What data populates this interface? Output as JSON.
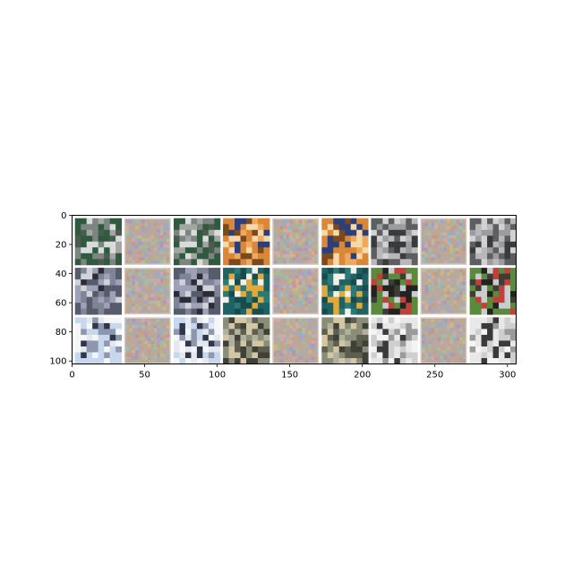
{
  "figure": {
    "x_ticks": [
      "0",
      "50",
      "100",
      "150",
      "200",
      "250",
      "300"
    ],
    "y_ticks": [
      "0",
      "20",
      "40",
      "60",
      "80",
      "100"
    ],
    "x_extent": [
      0,
      306
    ],
    "y_extent": [
      0,
      102
    ]
  },
  "grid": {
    "rows": 3,
    "cols": 9,
    "tile_pixels": 32,
    "padding_pixels": 2,
    "noise_tile_base": "#b8a89e",
    "noise_tile_border": "#d4c9c1",
    "tiles": [
      [
        {
          "content": "cat-vs-dog image (clean)",
          "kind": "photo",
          "palette": [
            "#2f5a3e",
            "#a2a7a3",
            "#d9dcdb",
            "#4c5b52",
            "#7c8580"
          ]
        },
        {
          "content": "adversarial noise pattern",
          "kind": "noise"
        },
        {
          "content": "cat-vs-dog image (adversarial)",
          "kind": "photo",
          "palette": [
            "#2f5a3e",
            "#a2a7a3",
            "#d9dcdb",
            "#4c5b52",
            "#7c8580"
          ]
        },
        {
          "content": "orange cat face (clean)",
          "kind": "photo",
          "palette": [
            "#d98738",
            "#f0a85a",
            "#2d3e7a",
            "#f5d9a8",
            "#7a4a1c"
          ]
        },
        {
          "content": "adversarial noise pattern",
          "kind": "noise"
        },
        {
          "content": "orange cat face (adversarial)",
          "kind": "photo",
          "palette": [
            "#d98738",
            "#f0a85a",
            "#2d3e7a",
            "#f5d9a8",
            "#7a4a1c"
          ]
        },
        {
          "content": "grey car (clean)",
          "kind": "photo",
          "palette": [
            "#5d5e60",
            "#9c9c9e",
            "#d2d2d3",
            "#3a3b3d",
            "#b8b8ba"
          ]
        },
        {
          "content": "adversarial noise pattern",
          "kind": "noise"
        },
        {
          "content": "grey car (adversarial)",
          "kind": "photo",
          "palette": [
            "#5d5e60",
            "#9c9c9e",
            "#d2d2d3",
            "#3a3b3d",
            "#b8b8ba"
          ]
        }
      ],
      [
        {
          "content": "silver car (clean)",
          "kind": "photo",
          "palette": [
            "#575c6d",
            "#9ea1b8",
            "#d2d2db",
            "#2a2c36",
            "#7f8497"
          ]
        },
        {
          "content": "adversarial noise pattern",
          "kind": "noise"
        },
        {
          "content": "silver car (adversarial)",
          "kind": "photo",
          "palette": [
            "#575c6d",
            "#9ea1b8",
            "#d2d2db",
            "#2a2c36",
            "#7f8497"
          ]
        },
        {
          "content": "seaplane over teal water (clean)",
          "kind": "photo",
          "palette": [
            "#1f6264",
            "#2c7a76",
            "#f1f1ea",
            "#e1a83b",
            "#184b4d"
          ]
        },
        {
          "content": "adversarial noise pattern",
          "kind": "noise"
        },
        {
          "content": "seaplane over teal water (adversarial)",
          "kind": "photo",
          "palette": [
            "#1f6264",
            "#2c7a76",
            "#f1f1ea",
            "#e1a83b",
            "#184b4d"
          ]
        },
        {
          "content": "dark horse on grass (clean)",
          "kind": "photo",
          "palette": [
            "#5c8a3c",
            "#222220",
            "#c9cdd0",
            "#3c3e36",
            "#c0403c"
          ]
        },
        {
          "content": "adversarial noise pattern",
          "kind": "noise"
        },
        {
          "content": "dark horse on grass (adversarial)",
          "kind": "photo",
          "palette": [
            "#5c8a3c",
            "#222220",
            "#c9cdd0",
            "#3c3e36",
            "#c0403c"
          ]
        }
      ],
      [
        {
          "content": "airliner nose (clean)",
          "kind": "photo",
          "palette": [
            "#c7d7ee",
            "#e5e9ef",
            "#2f3649",
            "#8d97ad",
            "#f4f6f8"
          ]
        },
        {
          "content": "adversarial noise pattern",
          "kind": "noise"
        },
        {
          "content": "airliner nose (adversarial)",
          "kind": "photo",
          "palette": [
            "#c7d7ee",
            "#e5e9ef",
            "#2f3649",
            "#8d97ad",
            "#f4f6f8"
          ]
        },
        {
          "content": "aircraft on tarmac (clean)",
          "kind": "photo",
          "palette": [
            "#8a8d78",
            "#d3c6a2",
            "#5e5e4e",
            "#b1b1a0",
            "#3f4038"
          ]
        },
        {
          "content": "adversarial noise pattern",
          "kind": "noise"
        },
        {
          "content": "aircraft on tarmac (adversarial)",
          "kind": "photo",
          "palette": [
            "#8a8d78",
            "#d3c6a2",
            "#5e5e4e",
            "#b1b1a0",
            "#3f4038"
          ]
        },
        {
          "content": "plane on white sky (clean)",
          "kind": "photo",
          "palette": [
            "#e8e8e8",
            "#f4f4f4",
            "#3a3a3a",
            "#9a9a9a",
            "#cfcfcf"
          ]
        },
        {
          "content": "adversarial noise pattern",
          "kind": "noise"
        },
        {
          "content": "plane on white sky (adversarial)",
          "kind": "photo",
          "palette": [
            "#e8e8e8",
            "#f4f4f4",
            "#3a3a3a",
            "#9a9a9a",
            "#cfcfcf"
          ]
        }
      ]
    ]
  }
}
